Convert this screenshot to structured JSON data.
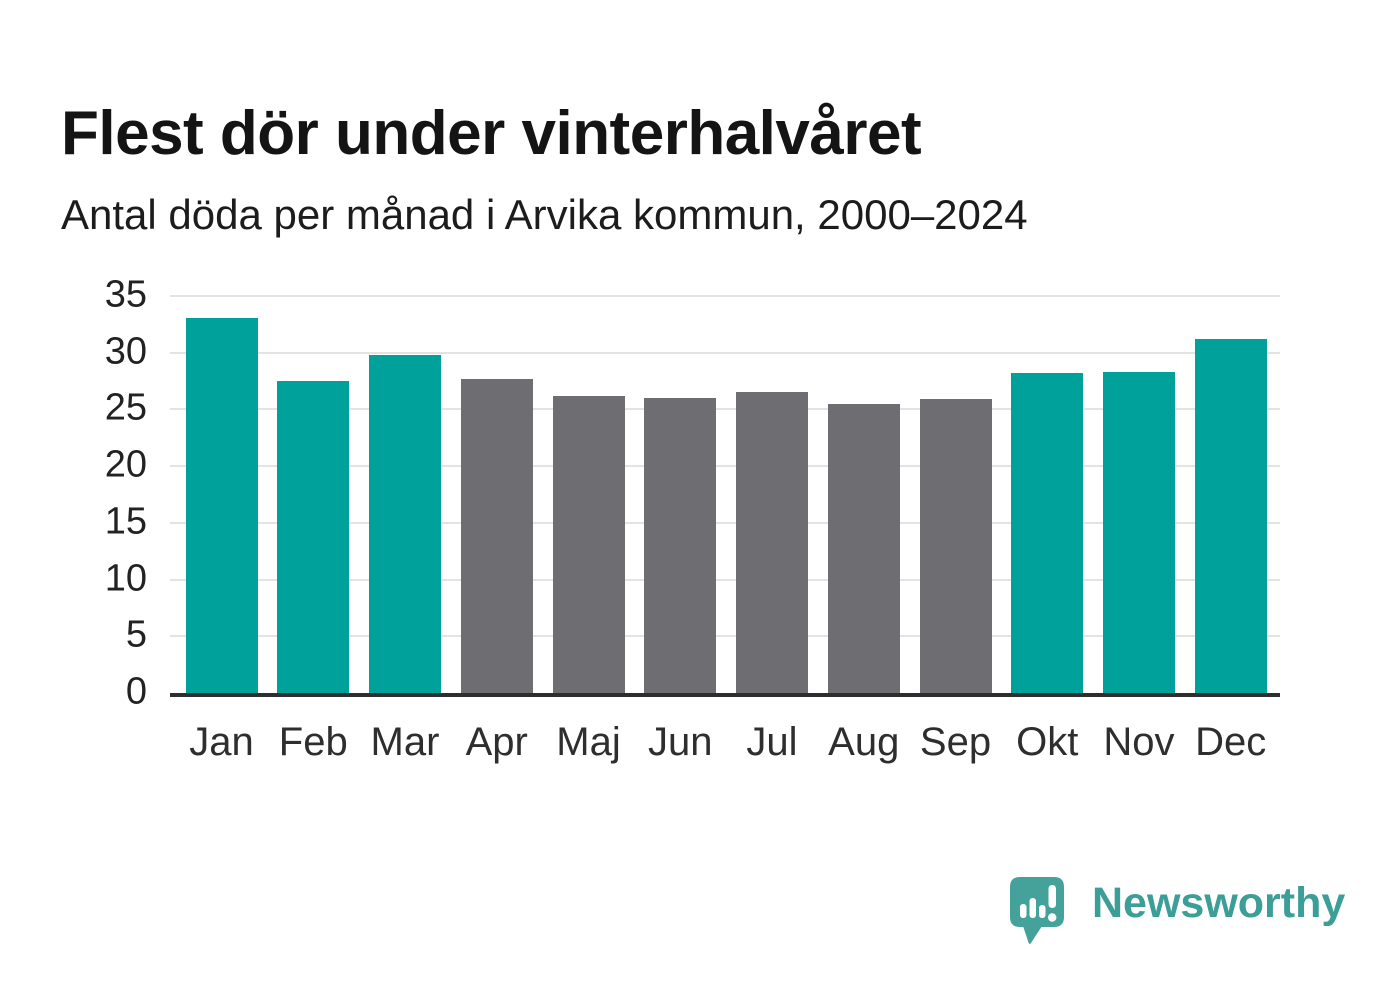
{
  "page": {
    "title": "Flest dör under vinterhalvåret",
    "subtitle": "Antal döda per månad i Arvika kommun, 2000–2024"
  },
  "chart_data": {
    "type": "bar",
    "title": "Flest dör under vinterhalvåret",
    "subtitle": "Antal döda per månad i Arvika kommun, 2000–2024",
    "categories": [
      "Jan",
      "Feb",
      "Mar",
      "Apr",
      "Maj",
      "Jun",
      "Jul",
      "Aug",
      "Sep",
      "Okt",
      "Nov",
      "Dec"
    ],
    "values": [
      33.1,
      27.5,
      29.8,
      27.7,
      26.2,
      26.0,
      26.5,
      25.5,
      25.9,
      28.2,
      28.3,
      31.2
    ],
    "season_by_month": [
      "winter",
      "winter",
      "winter",
      "summer",
      "summer",
      "summer",
      "summer",
      "summer",
      "summer",
      "winter",
      "winter",
      "winter"
    ],
    "season_colors": {
      "winter": "#00a19a",
      "summer": "#6d6d72"
    },
    "xlabel": "",
    "ylabel": "",
    "ylim": [
      0,
      35
    ],
    "yticks": [
      0,
      5,
      10,
      15,
      20,
      25,
      30,
      35
    ],
    "grid": "horizontal",
    "legend": "none",
    "axis_color": "#2e2e2e",
    "gridline_color": "#e3e3e3"
  },
  "branding": {
    "logo_text": "Newsworthy",
    "logo_color": "#3b9e97",
    "logo_mark_color": "#45a29b"
  }
}
